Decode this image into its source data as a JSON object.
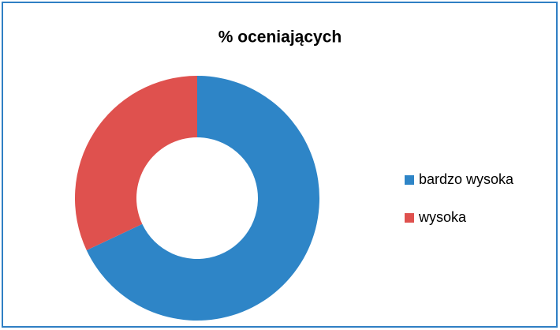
{
  "chart_data": {
    "type": "donut",
    "title": "% oceniających",
    "categories": [
      "bardzo wysoka",
      "wysoka"
    ],
    "values": [
      68,
      32
    ],
    "colors": [
      "#2e85c7",
      "#df514e"
    ],
    "legend": "right"
  }
}
